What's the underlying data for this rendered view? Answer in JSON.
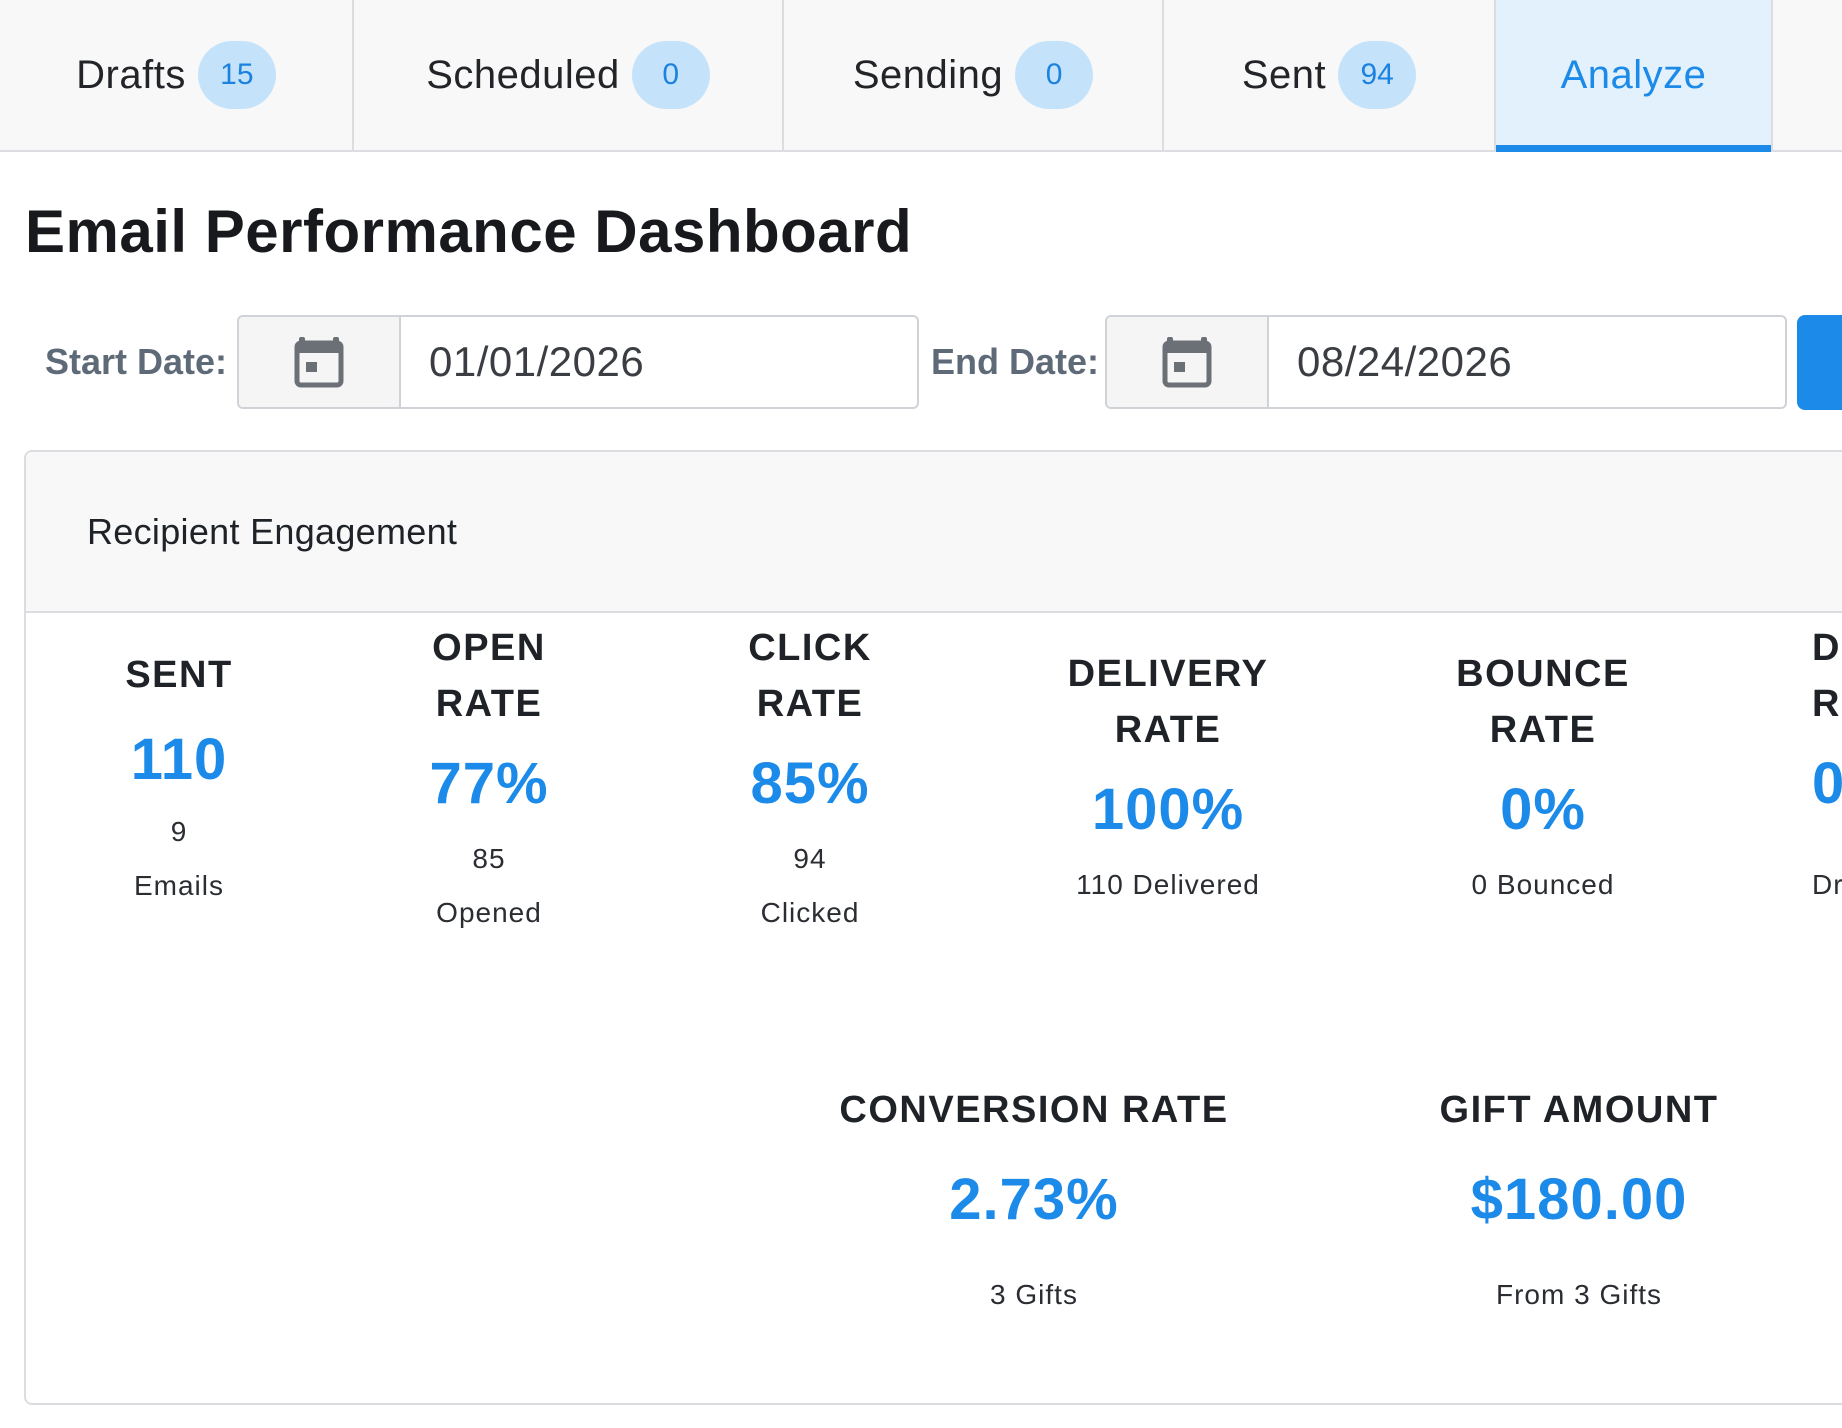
{
  "tabs": [
    {
      "label": "Drafts",
      "count": "15"
    },
    {
      "label": "Scheduled",
      "count": "0"
    },
    {
      "label": "Sending",
      "count": "0"
    },
    {
      "label": "Sent",
      "count": "94"
    },
    {
      "label": "Analyze",
      "active": true
    }
  ],
  "page": {
    "title": "Email Performance Dashboard"
  },
  "filters": {
    "start_label": "Start Date:",
    "start_value": "01/01/2026",
    "end_label": "End Date:",
    "end_value": "08/24/2026"
  },
  "engagement": {
    "title": "Recipient Engagement",
    "stats": [
      {
        "head1": "SENT",
        "value": "110",
        "sub1": "9",
        "sub2": "Emails"
      },
      {
        "head1": "OPEN",
        "head2": "RATE",
        "value": "77%",
        "sub1": "85",
        "sub2": "Opened"
      },
      {
        "head1": "CLICK",
        "head2": "RATE",
        "value": "85%",
        "sub1": "94",
        "sub2": "Clicked"
      },
      {
        "head1": "DELIVERY",
        "head2": "RATE",
        "value": "100%",
        "sub1": "110 Delivered"
      },
      {
        "head1": "BOUNCE",
        "head2": "RATE",
        "value": "0%",
        "sub1": "0 Bounced"
      },
      {
        "head1": "D",
        "head2": "R",
        "value": "0",
        "sub1": "Dr"
      }
    ],
    "bottom_stats": [
      {
        "head": "CONVERSION RATE",
        "value": "2.73%",
        "sub": "3 Gifts"
      },
      {
        "head": "GIFT AMOUNT",
        "value": "$180.00",
        "sub": "From 3 Gifts"
      }
    ]
  },
  "colors": {
    "accent": "#1b8ae8",
    "badge_bg": "#c4e3fb",
    "active_tab_bg": "#e3f1fc"
  },
  "icons": {
    "date_picker": "calendar-icon"
  }
}
